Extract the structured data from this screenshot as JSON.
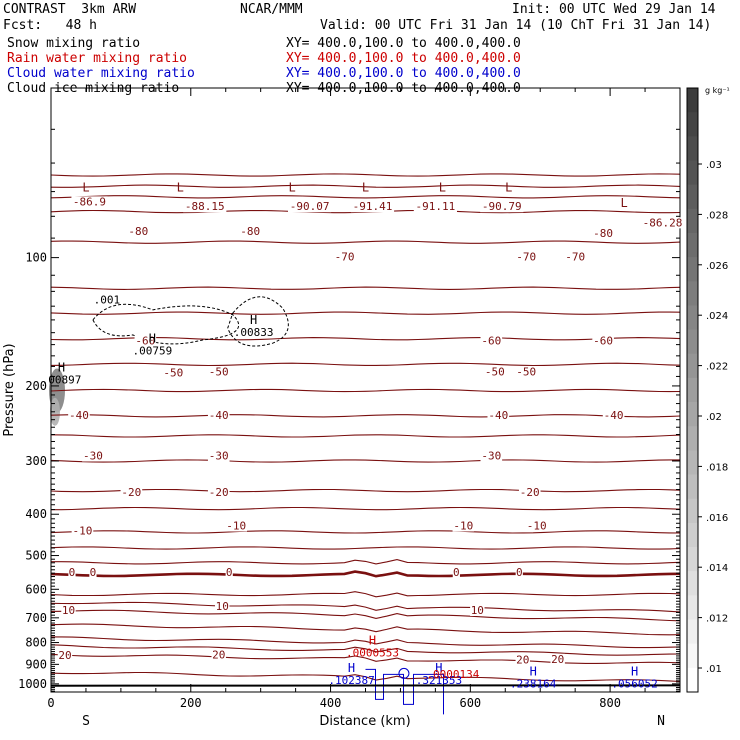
{
  "header": {
    "title": "CONTRAST  3km ARW",
    "fcst": "Fcst:   48 h",
    "org": "NCAR/MMM",
    "init": "Init: 00 UTC Wed 29 Jan 14",
    "valid": "Valid: 00 UTC Fri 31 Jan 14 (10 ChT Fri 31 Jan 14)",
    "fields": [
      {
        "name": "Snow mixing ratio",
        "xy": "XY= 400.0,100.0 to 400.0,400.0",
        "color": "#000000"
      },
      {
        "name": "Rain water mixing ratio",
        "xy": "XY= 400.0,100.0 to 400.0,400.0",
        "color": "#cc0000"
      },
      {
        "name": "Cloud water mixing ratio",
        "xy": "XY= 400.0,100.0 to 400.0,400.0",
        "color": "#0000cc"
      },
      {
        "name": "Cloud ice mixing ratio",
        "xy": "XY= 400.0,100.0 to 400.0,400.0",
        "color": "#000000"
      }
    ]
  },
  "chart_data": {
    "type": "contour cross-section",
    "xlabel": "Distance (km)",
    "ylabel": "Pressure (hPa)",
    "xlim": [
      0,
      900
    ],
    "ylim": [
      1045,
      40
    ],
    "yscale": "log",
    "xticks": [
      0,
      200,
      400,
      600,
      800
    ],
    "yticks": [
      100,
      200,
      300,
      400,
      500,
      600,
      700,
      800,
      900,
      1000
    ],
    "end_labels": {
      "left": "S",
      "right": "N"
    },
    "colorbar": {
      "unit": "g kg⁻¹",
      "ticks": [
        ".01",
        ".012",
        ".014",
        ".016",
        ".018",
        ".02",
        ".022",
        ".024",
        ".026",
        ".028",
        ".03"
      ],
      "levels": 25
    },
    "temperature_contour_labels": [
      {
        "text": "-86.9",
        "x": 55,
        "p": 75
      },
      {
        "text": "-88.15",
        "x": 220,
        "p": 77
      },
      {
        "text": "-90.07",
        "x": 370,
        "p": 77
      },
      {
        "text": "-91.41",
        "x": 460,
        "p": 77
      },
      {
        "text": "-91.11",
        "x": 550,
        "p": 77
      },
      {
        "text": "-90.79",
        "x": 645,
        "p": 77
      },
      {
        "text": "-86.28",
        "x": 875,
        "p": 84
      },
      {
        "text": "-80",
        "x": 125,
        "p": 88
      },
      {
        "text": "-80",
        "x": 285,
        "p": 88
      },
      {
        "text": "-80",
        "x": 790,
        "p": 89
      },
      {
        "text": "-70",
        "x": 420,
        "p": 101
      },
      {
        "text": "-70",
        "x": 680,
        "p": 101
      },
      {
        "text": "-70",
        "x": 750,
        "p": 101
      },
      {
        "text": "-60",
        "x": 135,
        "p": 159
      },
      {
        "text": "-60",
        "x": 630,
        "p": 159
      },
      {
        "text": "-60",
        "x": 790,
        "p": 159
      },
      {
        "text": "-50",
        "x": 175,
        "p": 189
      },
      {
        "text": "-50",
        "x": 240,
        "p": 188
      },
      {
        "text": "-50",
        "x": 635,
        "p": 188
      },
      {
        "text": "-50",
        "x": 680,
        "p": 188
      },
      {
        "text": "-40",
        "x": 40,
        "p": 238
      },
      {
        "text": "-40",
        "x": 240,
        "p": 238
      },
      {
        "text": "-40",
        "x": 640,
        "p": 238
      },
      {
        "text": "-40",
        "x": 805,
        "p": 238
      },
      {
        "text": "-30",
        "x": 60,
        "p": 296
      },
      {
        "text": "-30",
        "x": 240,
        "p": 296
      },
      {
        "text": "-30",
        "x": 630,
        "p": 296
      },
      {
        "text": "-20",
        "x": 115,
        "p": 361
      },
      {
        "text": "-20",
        "x": 240,
        "p": 361
      },
      {
        "text": "-20",
        "x": 685,
        "p": 361
      },
      {
        "text": "-10",
        "x": 45,
        "p": 444
      },
      {
        "text": "-10",
        "x": 265,
        "p": 432
      },
      {
        "text": "-10",
        "x": 590,
        "p": 432
      },
      {
        "text": "-10",
        "x": 695,
        "p": 432
      },
      {
        "text": "0",
        "x": 30,
        "p": 555
      },
      {
        "text": "0",
        "x": 60,
        "p": 555
      },
      {
        "text": "0",
        "x": 255,
        "p": 555
      },
      {
        "text": "0",
        "x": 580,
        "p": 555
      },
      {
        "text": "0",
        "x": 670,
        "p": 555
      },
      {
        "text": "10",
        "x": 25,
        "p": 682
      },
      {
        "text": "10",
        "x": 245,
        "p": 668
      },
      {
        "text": "10",
        "x": 610,
        "p": 682
      },
      {
        "text": "20",
        "x": 20,
        "p": 870
      },
      {
        "text": "20",
        "x": 240,
        "p": 868
      },
      {
        "text": "20",
        "x": 675,
        "p": 890
      },
      {
        "text": "20",
        "x": 725,
        "p": 888
      }
    ],
    "extrema": [
      {
        "kind": "L",
        "x": 50,
        "p": 70,
        "field": "temperature"
      },
      {
        "kind": "L",
        "x": 185,
        "p": 70,
        "field": "temperature"
      },
      {
        "kind": "L",
        "x": 345,
        "p": 70,
        "field": "temperature"
      },
      {
        "kind": "L",
        "x": 450,
        "p": 70,
        "field": "temperature"
      },
      {
        "kind": "L",
        "x": 560,
        "p": 70,
        "field": "temperature"
      },
      {
        "kind": "L",
        "x": 655,
        "p": 70,
        "field": "temperature"
      },
      {
        "kind": "L",
        "x": 820,
        "p": 76,
        "field": "temperature"
      },
      {
        "kind": "H",
        "x": 15,
        "p": 185,
        "value": ".00897",
        "field": "snow"
      },
      {
        "kind": "H",
        "x": 145,
        "p": 158,
        "value": ".00759",
        "field": "snow"
      },
      {
        "kind": "H",
        "x": 290,
        "p": 143,
        "value": ".00833",
        "field": "snow"
      },
      {
        "kind": "H",
        "x": 460,
        "p": 808,
        "value": ".0000553",
        "field": "rain"
      },
      {
        "kind": "H",
        "x": 430,
        "p": 938,
        "value": ".102387",
        "field": "cloud_water"
      },
      {
        "kind": "H",
        "x": 555,
        "p": 938,
        "value": ".321353",
        "field": "cloud_water"
      },
      {
        "kind": "H",
        "x": 690,
        "p": 957,
        "value": ".238164",
        "field": "cloud_water"
      },
      {
        "kind": "H",
        "x": 835,
        "p": 957,
        "value": ".056052",
        "field": "cloud_water"
      }
    ],
    "small_labels": [
      {
        "text": ".001",
        "x": 80,
        "p": 128,
        "field": "snow"
      },
      {
        "text": ".0000134",
        "x": 575,
        "p": 970,
        "field": "rain"
      }
    ]
  }
}
